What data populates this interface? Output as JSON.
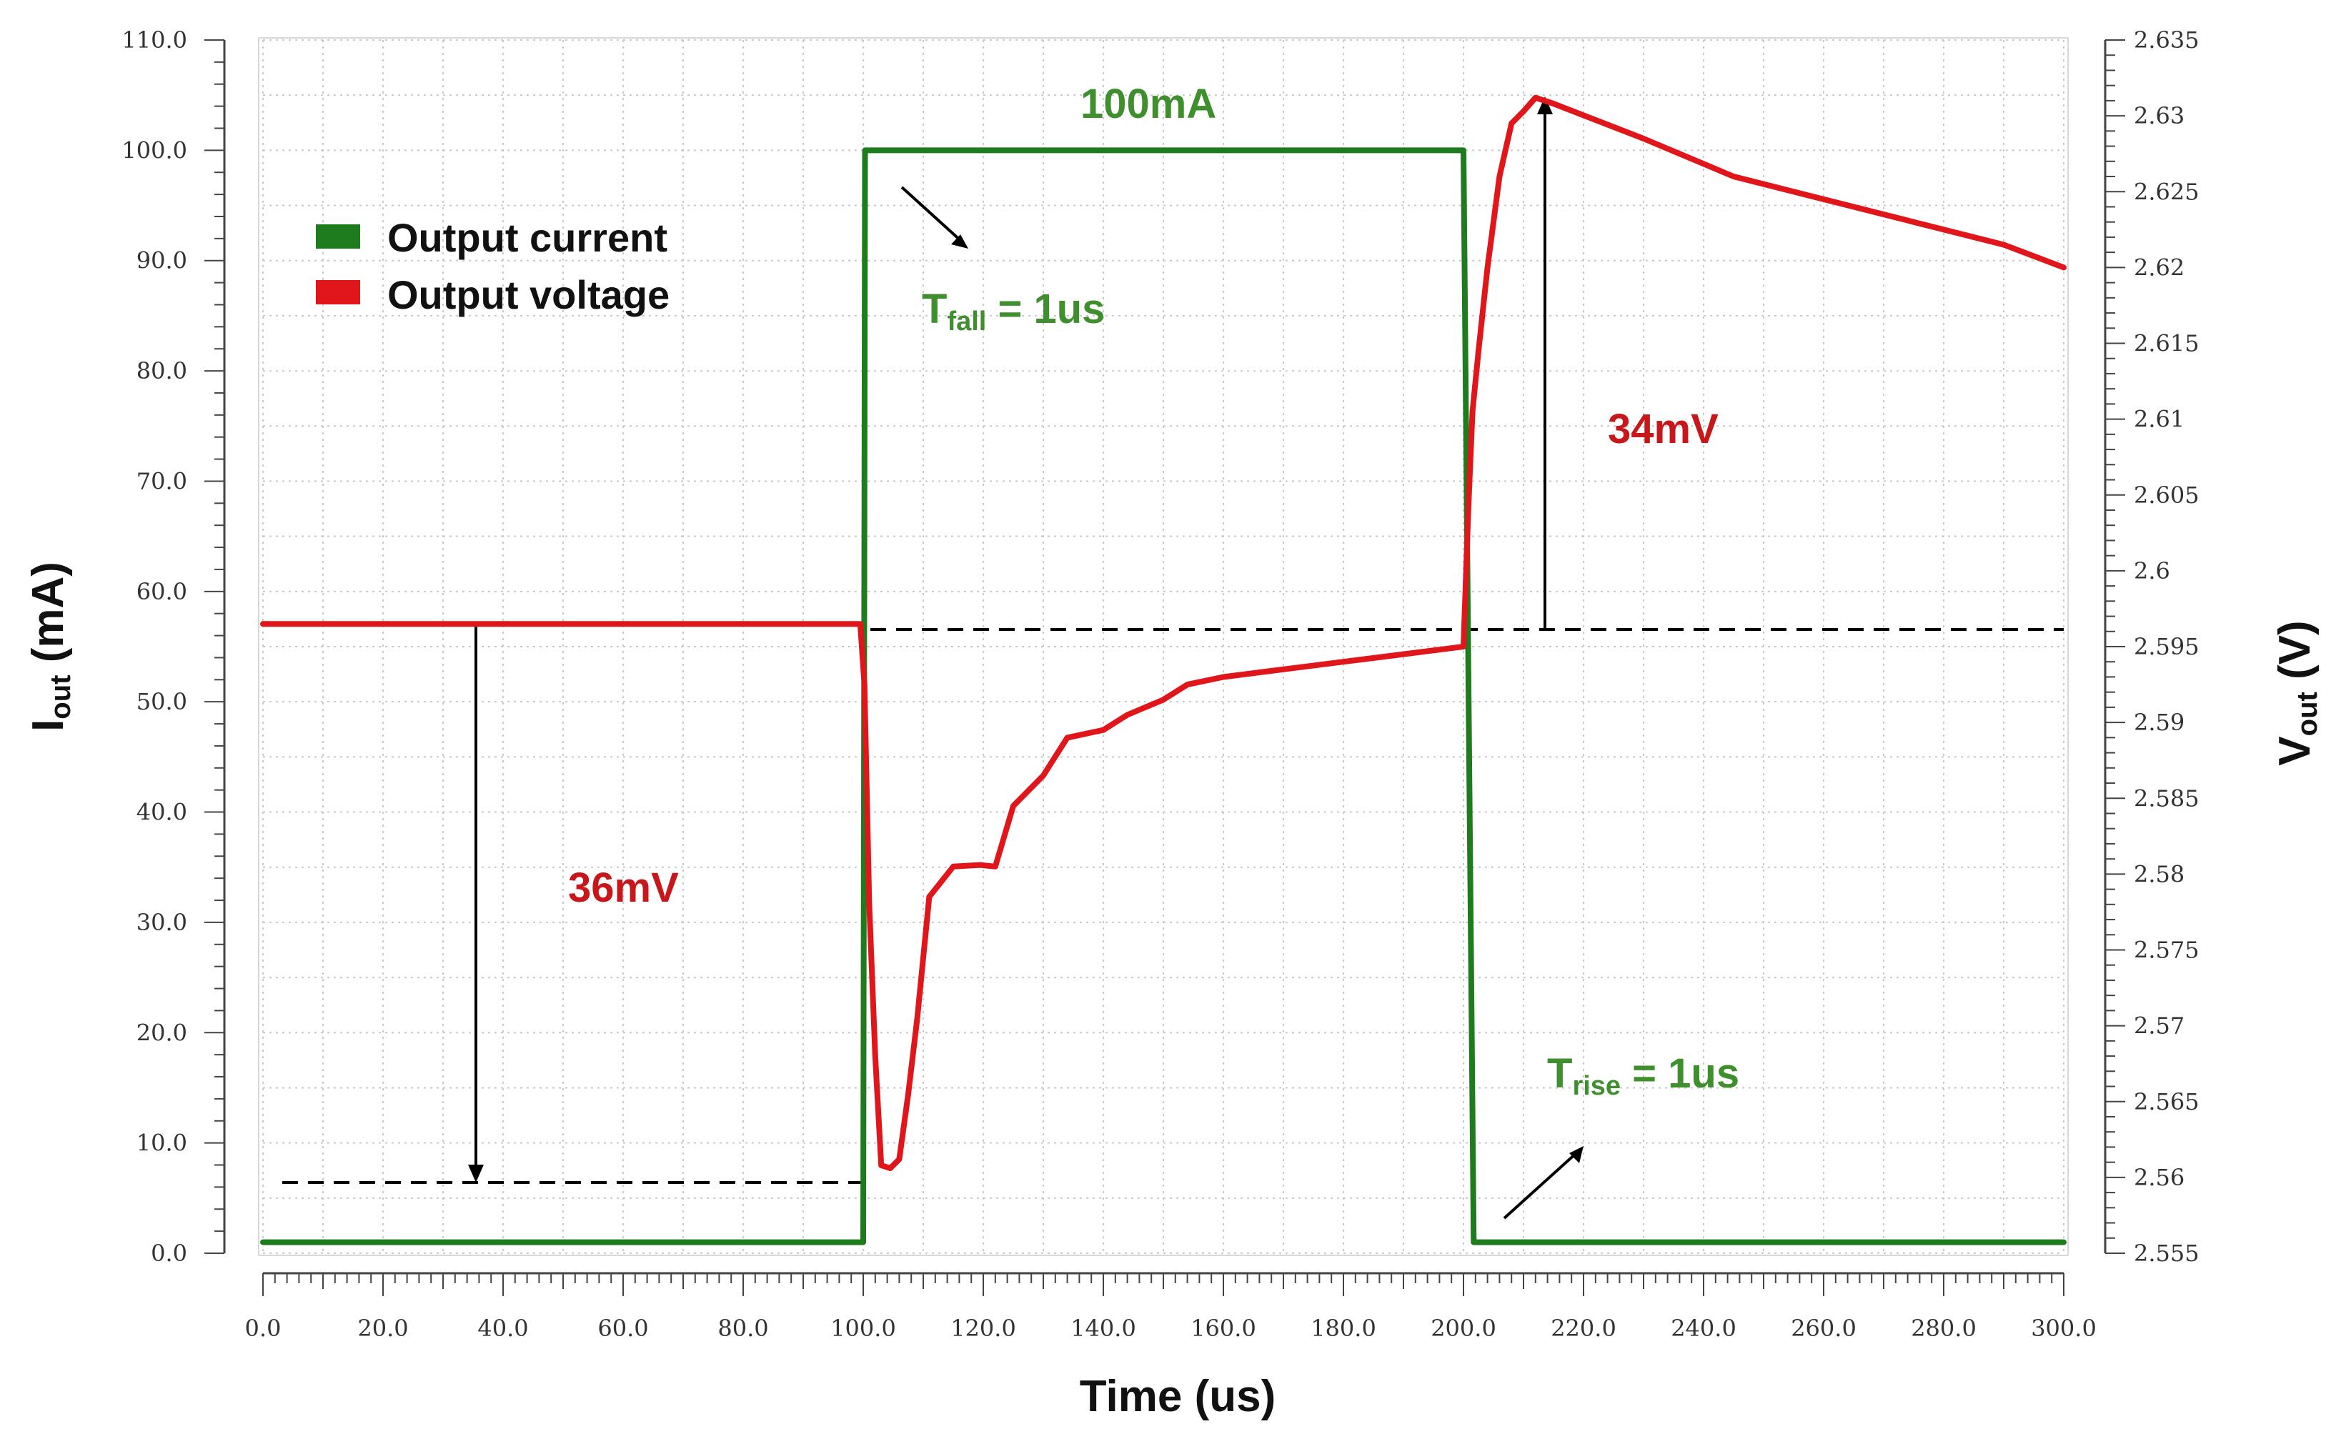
{
  "chart_data": {
    "type": "line",
    "xlabel": "Time (us)",
    "ylabel_left": {
      "main": "I",
      "sub": "out",
      "rest": " (mA)"
    },
    "ylabel_right": {
      "main": "V",
      "sub": "out",
      "rest": " (V)"
    },
    "xlim": [
      0,
      300
    ],
    "ylim_left": [
      0,
      110
    ],
    "ylim_right": [
      2.555,
      2.635
    ],
    "x_ticks": [
      "0.0",
      "20.0",
      "40.0",
      "60.0",
      "80.0",
      "100.0",
      "120.0",
      "140.0",
      "160.0",
      "180.0",
      "200.0",
      "220.0",
      "240.0",
      "260.0",
      "280.0",
      "300.0"
    ],
    "y_ticks_left": [
      "0.0",
      "10.0",
      "20.0",
      "30.0",
      "40.0",
      "50.0",
      "60.0",
      "70.0",
      "80.0",
      "90.0",
      "100.0",
      "110.0"
    ],
    "y_ticks_right": [
      "2.555",
      "2.56",
      "2.565",
      "2.57",
      "2.575",
      "2.58",
      "2.585",
      "2.59",
      "2.595",
      "2.6",
      "2.605",
      "2.61",
      "2.615",
      "2.62",
      "2.625",
      "2.63",
      "2.635"
    ],
    "grid": true,
    "legend_position": "top-left",
    "series": [
      {
        "name": "Output current",
        "axis": "left",
        "color": "#1e7b1e",
        "x": [
          0,
          100,
          100.3,
          200,
          201.7,
          300
        ],
        "y": [
          1,
          1,
          100,
          100,
          1,
          1
        ]
      },
      {
        "name": "Output voltage",
        "axis": "right",
        "color": "#e0161b",
        "x": [
          0,
          99.5,
          100.2,
          101,
          102,
          103,
          104.5,
          106,
          107.5,
          109,
          111,
          113,
          115,
          119.5,
          122,
          125,
          130,
          134,
          140,
          144,
          150,
          154,
          160,
          170,
          180,
          190,
          200,
          200.8,
          201.5,
          202.5,
          204,
          206,
          208,
          210,
          212,
          215,
          230,
          245,
          260,
          275,
          290,
          300
        ],
        "y": [
          2.5965,
          2.5965,
          2.5925,
          2.578,
          2.568,
          2.5608,
          2.5606,
          2.5612,
          2.5655,
          2.5705,
          2.5785,
          2.5795,
          2.5805,
          2.5806,
          2.5805,
          2.5845,
          2.5865,
          2.589,
          2.5895,
          2.5905,
          2.5915,
          2.5925,
          2.593,
          2.5935,
          2.594,
          2.5945,
          2.595,
          2.604,
          2.6105,
          2.6145,
          2.62,
          2.626,
          2.6295,
          2.6303,
          2.6312,
          2.6308,
          2.6285,
          2.626,
          2.6245,
          2.623,
          2.6215,
          2.62
        ]
      }
    ],
    "annotations": {
      "current_step": {
        "text": "100mA",
        "color": "#3f8f2f"
      },
      "t_fall": {
        "main": "T",
        "sub": "fall",
        "rest": " = 1us",
        "color": "#3f8f2f"
      },
      "t_rise": {
        "main": "T",
        "sub": "rise",
        "rest": " = 1us",
        "color": "#3f8f2f"
      },
      "undershoot": {
        "text": "36mV",
        "color": "#c8171b"
      },
      "overshoot": {
        "text": "34mV",
        "color": "#c8171b"
      }
    }
  }
}
